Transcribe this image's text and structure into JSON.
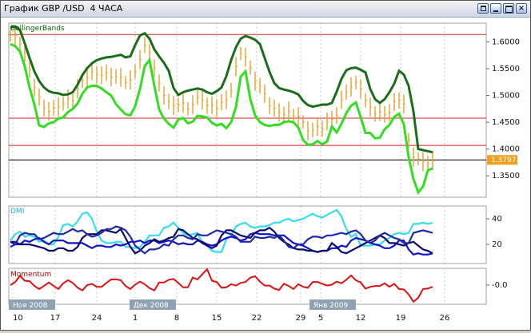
{
  "window": {
    "title": "График GBP /USD  4 ЧАСА",
    "buttons": [
      "restore",
      "minimize",
      "maximize",
      "close"
    ]
  },
  "panels": {
    "main": {
      "label": "BollingerBands",
      "price_label": "1.3797"
    },
    "dmi": {
      "label": "DMI"
    },
    "momentum": {
      "label": "Momentum"
    }
  },
  "chart_data": [
    {
      "type": "line",
      "title": "BollingerBands",
      "yticks": [
        "1.6000",
        "1.5500",
        "1.5000",
        "1.4500",
        "1.4000",
        "1.3500"
      ],
      "ylim": [
        1.31,
        1.635
      ],
      "horizontal_lines": [
        1.6138,
        1.4576,
        1.4068,
        1.3797
      ],
      "current_price": 1.3797,
      "series": [
        {
          "values": [
            1.627,
            1.629,
            1.622,
            1.597,
            1.57,
            1.545,
            1.527,
            1.515,
            1.508,
            1.505,
            1.504,
            1.501,
            1.502,
            1.506,
            1.52,
            1.538,
            1.551,
            1.56,
            1.566,
            1.569,
            1.571,
            1.572,
            1.574,
            1.576,
            1.571,
            1.573,
            1.594,
            1.612,
            1.616,
            1.606,
            1.586,
            1.573,
            1.561,
            1.546,
            1.514,
            1.501,
            1.506,
            1.509,
            1.511,
            1.513,
            1.511,
            1.506,
            1.503,
            1.508,
            1.515,
            1.536,
            1.566,
            1.59,
            1.606,
            1.611,
            1.608,
            1.604,
            1.596,
            1.57,
            1.544,
            1.523,
            1.514,
            1.511,
            1.509,
            1.506,
            1.502,
            1.49,
            1.482,
            1.479,
            1.481,
            1.483,
            1.483,
            1.486,
            1.507,
            1.531,
            1.547,
            1.551,
            1.552,
            1.548,
            1.543,
            1.512,
            1.493,
            1.486,
            1.493,
            1.506,
            1.522,
            1.546,
            1.539,
            1.518,
            1.47,
            1.4,
            1.398,
            1.396,
            1.394
          ]
        },
        {
          "values": [
            1.613,
            1.609,
            1.6,
            1.578,
            1.547,
            1.518,
            1.493,
            1.478,
            1.472,
            1.473,
            1.482,
            1.484,
            1.491,
            1.494,
            1.51,
            1.528,
            1.536,
            1.54,
            1.541,
            1.539,
            1.539,
            1.538,
            1.534,
            1.532,
            1.528,
            1.526,
            1.545,
            1.57,
            1.59,
            1.582,
            1.552,
            1.52,
            1.504,
            1.487,
            1.48,
            1.486,
            1.482,
            1.476,
            1.485,
            1.492,
            1.494,
            1.481,
            1.479,
            1.48,
            1.485,
            1.491,
            1.513,
            1.55,
            1.58,
            1.573,
            1.548,
            1.53,
            1.517,
            1.501,
            1.485,
            1.473,
            1.468,
            1.467,
            1.467,
            1.464,
            1.461,
            1.447,
            1.438,
            1.434,
            1.44,
            1.442,
            1.448,
            1.456,
            1.465,
            1.488,
            1.509,
            1.516,
            1.521,
            1.516,
            1.489,
            1.477,
            1.469,
            1.466,
            1.466,
            1.47,
            1.484,
            1.494,
            1.484,
            1.414,
            1.389,
            1.379,
            1.376,
            1.377,
            1.374
          ]
        },
        {
          "values": [
            1.596,
            1.592,
            1.582,
            1.554,
            1.515,
            1.483,
            1.444,
            1.441,
            1.448,
            1.45,
            1.457,
            1.459,
            1.469,
            1.475,
            1.485,
            1.503,
            1.515,
            1.518,
            1.518,
            1.513,
            1.506,
            1.5,
            1.484,
            1.474,
            1.465,
            1.463,
            1.48,
            1.512,
            1.555,
            1.566,
            1.518,
            1.474,
            1.457,
            1.447,
            1.44,
            1.455,
            1.458,
            1.448,
            1.451,
            1.462,
            1.461,
            1.459,
            1.449,
            1.444,
            1.447,
            1.439,
            1.45,
            1.478,
            1.535,
            1.545,
            1.493,
            1.463,
            1.45,
            1.445,
            1.443,
            1.445,
            1.445,
            1.45,
            1.452,
            1.45,
            1.44,
            1.417,
            1.408,
            1.409,
            1.415,
            1.409,
            1.414,
            1.442,
            1.431,
            1.447,
            1.467,
            1.481,
            1.487,
            1.46,
            1.43,
            1.43,
            1.42,
            1.421,
            1.437,
            1.445,
            1.46,
            1.466,
            1.446,
            1.385,
            1.344,
            1.319,
            1.33,
            1.36,
            1.364
          ]
        }
      ]
    },
    {
      "type": "line",
      "title": "DMI",
      "yticks": [
        "40",
        "20"
      ],
      "ylim": [
        5,
        50
      ],
      "series": [
        {
          "values": [
            23,
            28,
            30,
            26,
            27,
            26,
            22,
            23,
            20,
            20,
            26,
            35,
            36,
            34,
            38,
            44,
            45,
            40,
            30,
            23,
            21,
            21,
            22,
            22,
            18,
            18,
            17,
            18,
            22,
            27,
            27,
            27,
            33,
            34,
            37,
            33,
            29,
            27,
            28,
            29,
            21,
            19,
            15,
            14,
            14,
            24,
            27,
            34,
            36,
            37,
            34,
            33,
            34,
            34,
            35,
            37,
            37,
            39,
            40,
            38,
            39,
            40,
            42,
            44,
            42,
            41,
            43,
            45,
            47,
            42,
            32,
            26,
            28,
            19,
            19,
            19,
            20,
            20,
            23,
            25,
            28,
            29,
            28,
            29,
            36,
            36,
            37,
            36,
            37
          ]
        },
        {
          "values": [
            22,
            20,
            20,
            23,
            22,
            24,
            25,
            22,
            20,
            23,
            23,
            23,
            21,
            21,
            21,
            21,
            19,
            17,
            19,
            19,
            18,
            18,
            20,
            19,
            20,
            22,
            22,
            23,
            21,
            23,
            23,
            21,
            22,
            23,
            22,
            20,
            21,
            20,
            20,
            23,
            22,
            20,
            19,
            20,
            23,
            25,
            26,
            25,
            23,
            24,
            28,
            29,
            28,
            28,
            28,
            27,
            27,
            27,
            24,
            21,
            20,
            19,
            17,
            15,
            14,
            15,
            15,
            17,
            17,
            19,
            18,
            23,
            25,
            24,
            23,
            21,
            20,
            19,
            17,
            17,
            19,
            23,
            23,
            16,
            12,
            13,
            12,
            12,
            13
          ]
        },
        {
          "values": [
            22,
            22,
            20,
            20,
            20,
            19,
            18,
            17,
            15,
            15,
            17,
            17,
            15,
            15,
            18,
            25,
            28,
            28,
            28,
            31,
            31,
            30,
            29,
            32,
            25,
            18,
            13,
            15,
            19,
            21,
            24,
            22,
            23,
            25,
            26,
            32,
            31,
            28,
            25,
            24,
            21,
            19,
            17,
            19,
            27,
            31,
            31,
            29,
            27,
            26,
            25,
            29,
            31,
            31,
            33,
            30,
            25,
            22,
            20,
            17,
            16,
            16,
            15,
            15,
            14,
            15,
            15,
            21,
            18,
            14,
            13,
            15,
            17,
            19,
            21,
            23,
            25,
            27,
            25,
            21,
            21,
            20,
            19,
            21,
            22,
            19,
            16,
            15,
            13
          ]
        },
        {
          "values": [
            18,
            20,
            27,
            29,
            28,
            28,
            24,
            25,
            27,
            29,
            28,
            28,
            30,
            32,
            30,
            31,
            28,
            26,
            27,
            29,
            32,
            32,
            34,
            33,
            31,
            26,
            19,
            16,
            13,
            16,
            16,
            17,
            20,
            19,
            24,
            27,
            27,
            25,
            24,
            28,
            27,
            27,
            29,
            31,
            30,
            29,
            28,
            26,
            22,
            22,
            22,
            26,
            25,
            25,
            26,
            25,
            27,
            23,
            18,
            17,
            20,
            20,
            24,
            26,
            26,
            25,
            27,
            27,
            28,
            29,
            28,
            30,
            31,
            28,
            23,
            21,
            23,
            27,
            29,
            27,
            25,
            24,
            21,
            21,
            29,
            30,
            31,
            30,
            29
          ]
        }
      ]
    },
    {
      "type": "line",
      "title": "Momentum",
      "yticks": [
        "-0.0"
      ],
      "values": [
        0.0,
        0.007,
        0.021,
        0.01,
        0.009,
        -0.002,
        -0.009,
        -0.002,
        0.006,
        -0.002,
        -0.009,
        0.004,
        0.011,
        0.005,
        -0.006,
        -0.012,
        -0.0,
        0.003,
        -0.004,
        -0.004,
        0.005,
        0.013,
        0.013,
        0.011,
        -0.002,
        -0.009,
        0.001,
        0.008,
        0.002,
        -0.007,
        -0.012,
        0.006,
        0.006,
        0.012,
        0.014,
        0.005,
        -0.005,
        -0.005,
        0.017,
        0.013,
        0.025,
        0.036,
        0.01,
        0.007,
        -0.006,
        -0.005,
        0.002,
        -0.001,
        0.005,
        0.007,
        0.017,
        0.02,
        0.008,
        -0.001,
        -0.001,
        -0.008,
        -0.011,
        0.003,
        -0.002,
        -0.009,
        0.002,
        -0.004,
        -0.006,
        0.007,
        0.007,
        0.003,
        -0.001,
        0.001,
        0.008,
        0.004,
        0.012,
        0.022,
        0.011,
        0.006,
        -0.008,
        -0.004,
        -0.002,
        -0.002,
        0.004,
        -0.004,
        0.003,
        -0.009,
        -0.01,
        -0.021,
        -0.038,
        -0.029,
        -0.009,
        -0.008,
        -0.004
      ]
    }
  ],
  "x_axis": {
    "tick_labels": [
      "10",
      "17",
      "24",
      "1",
      "8",
      "15",
      "22",
      "29",
      "5",
      "12",
      "19",
      "26"
    ],
    "month_labels": [
      "Ноя 2008",
      "Дек 2008",
      "Янв 2009"
    ]
  },
  "colors": {
    "upper_band": "#1a6e1a",
    "lower_band": "#33dd22",
    "price_bars": "#e2a12e",
    "red_levels": "#cc2222",
    "dmi_cyan": "#33ddee",
    "dmi_blue": "#1111cc",
    "dmi_navy": "#0a0a6e",
    "dmi_mid": "#1e2aa8",
    "momentum": "#dd1111",
    "price_label_bg": "#f0a020"
  }
}
